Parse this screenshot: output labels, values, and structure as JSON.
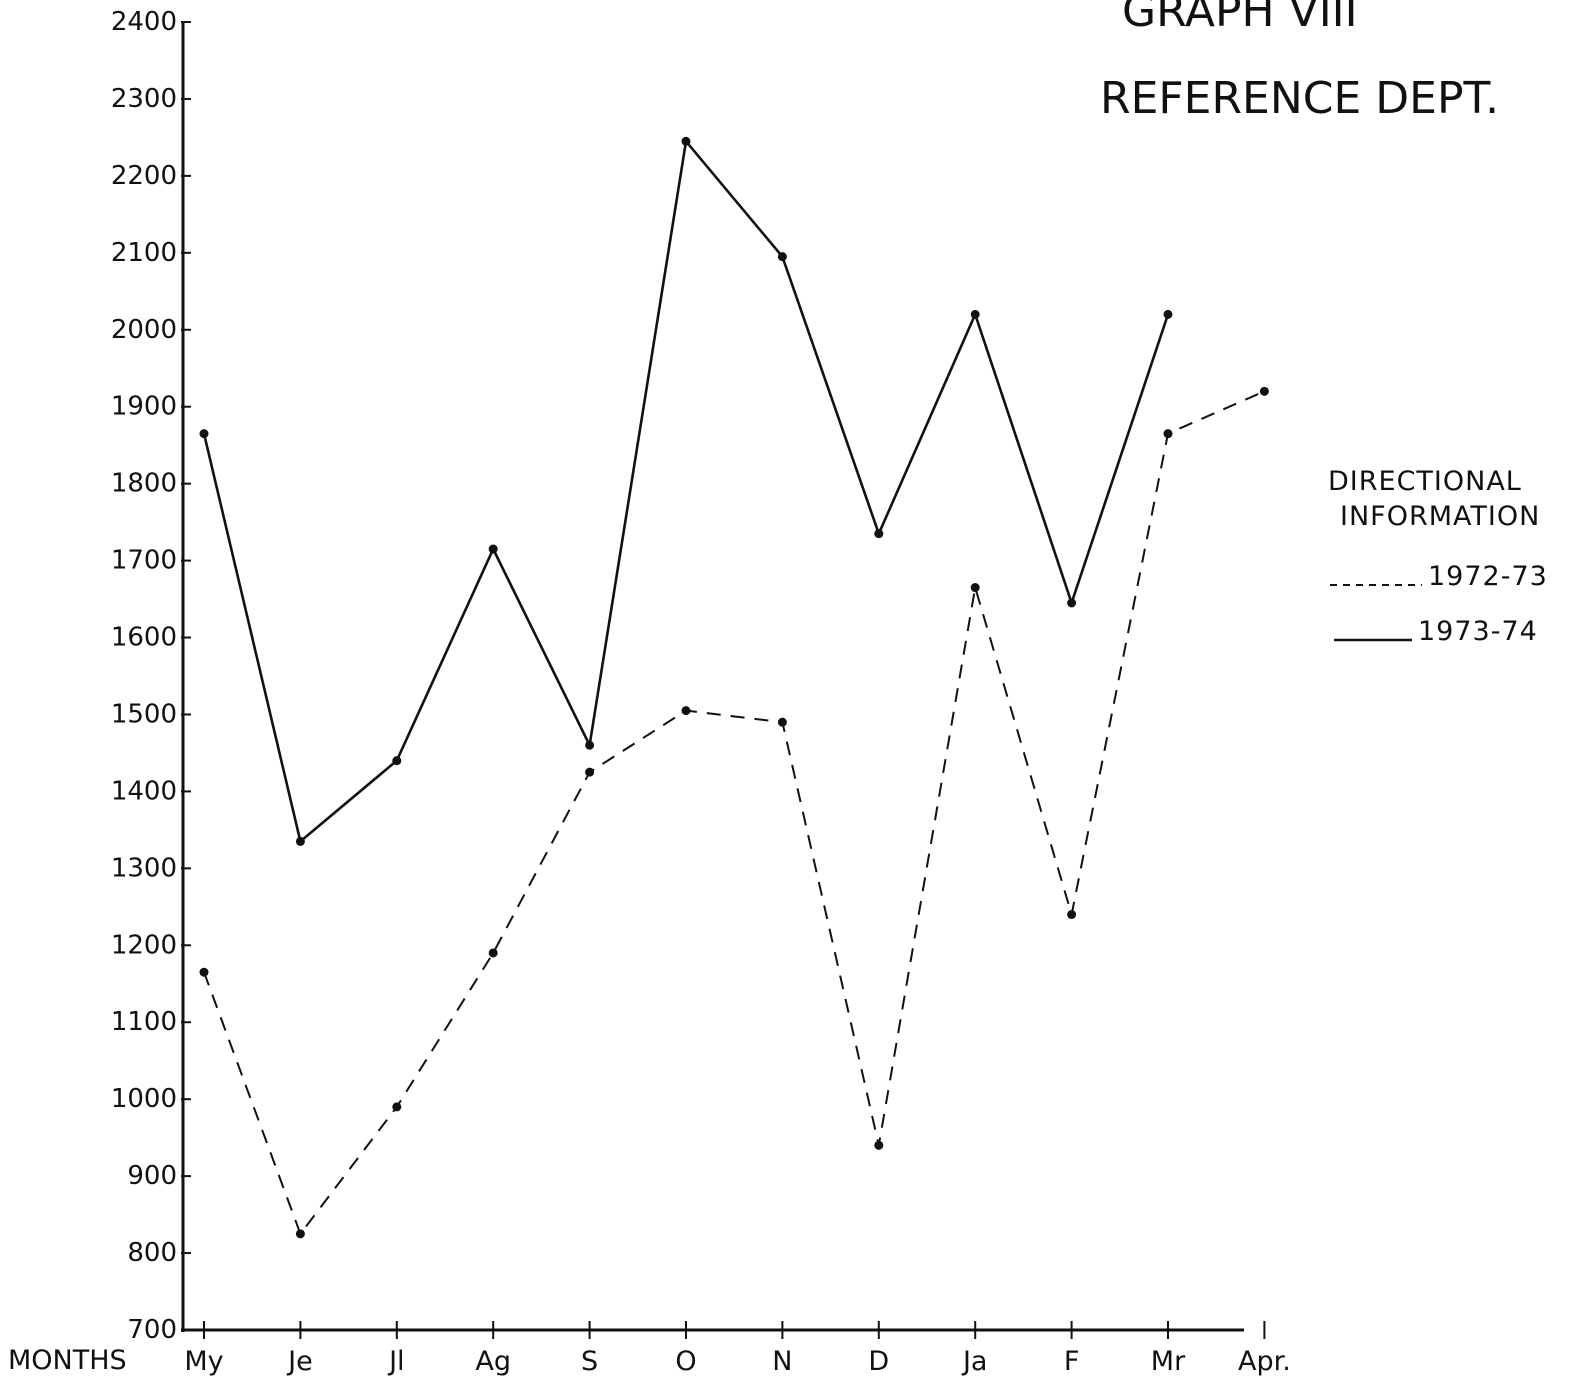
{
  "chart_data": {
    "type": "line",
    "title": "GRAPH VIII",
    "subtitle": "REFERENCE DEPT.",
    "xlabel": "MONTHS",
    "ylabel": "",
    "ylim": [
      700,
      2400
    ],
    "yticks": [
      "2400",
      "2300",
      "2200",
      "2100",
      "2000",
      "1900",
      "1800",
      "1700",
      "1600",
      "1500",
      "1400",
      "1300",
      "1200",
      "1100",
      "1000",
      "900",
      "800",
      "700"
    ],
    "categories": [
      "My",
      "Je",
      "Jl",
      "Ag",
      "S",
      "O",
      "N",
      "D",
      "Ja",
      "F",
      "Mr",
      "Apr."
    ],
    "legend": {
      "title_line1": "DIRECTIONAL",
      "title_line2": "INFORMATION",
      "placement": "right"
    },
    "series": [
      {
        "name": "1972-73",
        "style": "dashed",
        "values": [
          1165,
          825,
          990,
          1190,
          1425,
          1505,
          1490,
          940,
          1665,
          1240,
          1865,
          1920
        ]
      },
      {
        "name": "1973-74",
        "style": "solid",
        "values": [
          1865,
          1335,
          1440,
          1715,
          1460,
          2245,
          2095,
          1735,
          2020,
          1645,
          2020,
          null
        ]
      }
    ],
    "colors": {
      "ink": "#111111",
      "paper": "#ffffff"
    },
    "grid": false
  }
}
